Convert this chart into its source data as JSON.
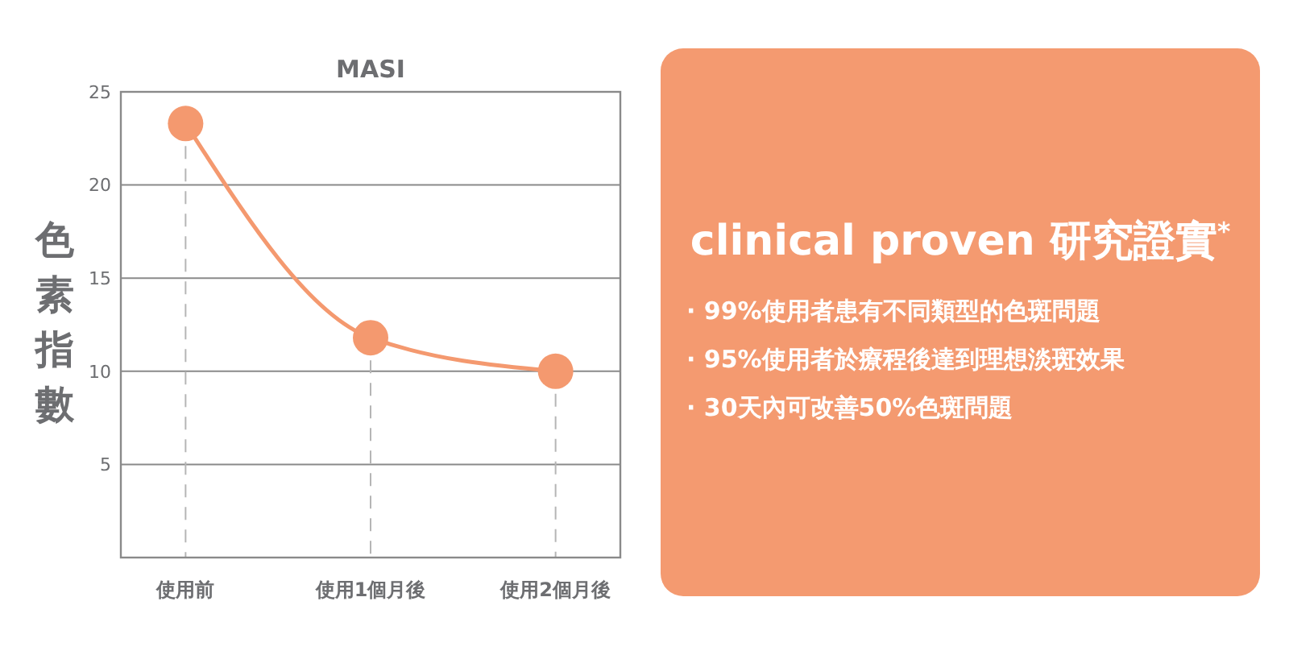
{
  "chart_data": [
    {
      "type": "line",
      "title": "MASI",
      "ylabel": "色素指數",
      "categories": [
        "使用前",
        "使用1個月後",
        "使用2個月後"
      ],
      "series": [
        {
          "color": "#f4996f",
          "values": [
            23.3,
            11.8,
            10
          ]
        }
      ],
      "ylim": [
        0,
        25
      ],
      "yticks": [
        5,
        10,
        15,
        20,
        25
      ],
      "grid": "y",
      "marker": "circle",
      "line_style": "solid",
      "ref_lines": [
        {
          "axis": "x",
          "value": "使用前",
          "color": "#b5b5b5",
          "line_style": "dashed"
        },
        {
          "axis": "x",
          "value": "使用1個月後",
          "color": "#b5b5b5",
          "line_style": "dashed"
        },
        {
          "axis": "x",
          "value": "使用2個月後",
          "color": "#b5b5b5",
          "line_style": "dashed"
        }
      ]
    },
    {
      "type": "other",
      "title": "clinical proven 研究證實$^{*}$",
      "color": "#f49a70",
      "annotations": [
        "· 99%使用者患有不同類型的色斑問題",
        "· 95%使用者於療程後達到理想淡斑效果",
        "· 30天內可改善50%色斑問題"
      ]
    }
  ]
}
